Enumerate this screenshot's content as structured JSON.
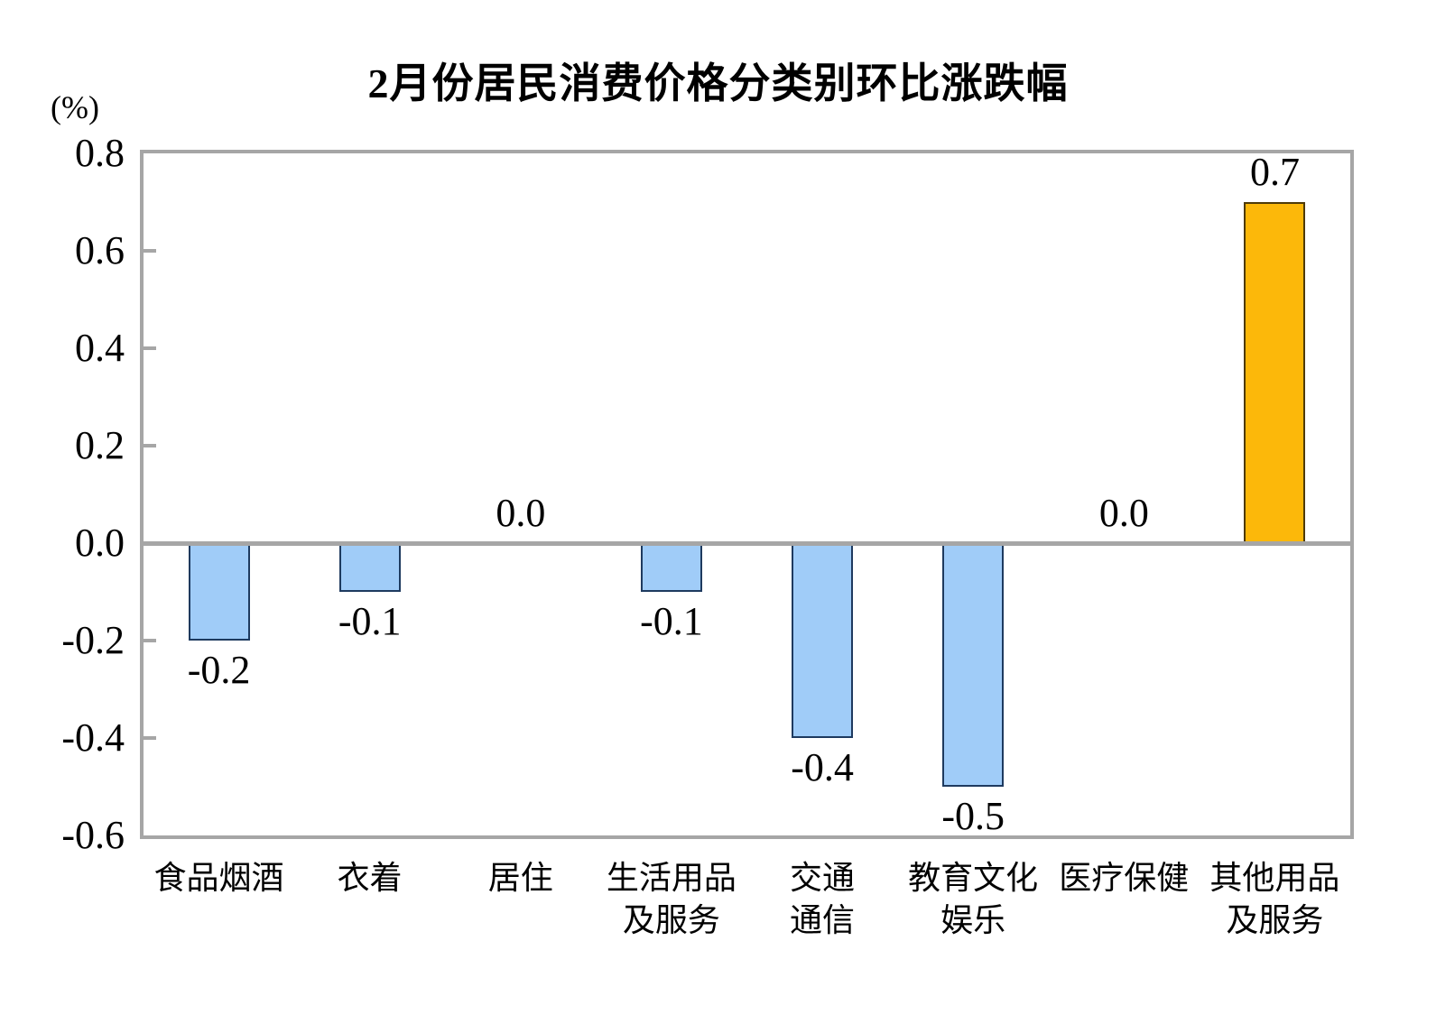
{
  "chart_data": {
    "type": "bar",
    "title": "2月份居民消费价格分类别环比涨跌幅",
    "unit_label": "(%)",
    "categories": [
      "食品烟酒",
      "衣着",
      "居住",
      "生活用品及服务",
      "交通通信",
      "教育文化娱乐",
      "医疗保健",
      "其他用品及服务"
    ],
    "category_display_lines": [
      [
        "食品烟酒"
      ],
      [
        "衣着"
      ],
      [
        "居住"
      ],
      [
        "生活用品",
        "及服务"
      ],
      [
        "交通",
        "通信"
      ],
      [
        "教育文化",
        "娱乐"
      ],
      [
        "医疗保健"
      ],
      [
        "其他用品",
        "及服务"
      ]
    ],
    "values": [
      -0.2,
      -0.1,
      0.0,
      -0.1,
      -0.4,
      -0.5,
      0.0,
      0.7
    ],
    "value_labels": [
      "-0.2",
      "-0.1",
      "0.0",
      "-0.1",
      "-0.4",
      "-0.5",
      "0.0",
      "0.7"
    ],
    "ylabel": "",
    "xlabel": "",
    "ylim": [
      -0.6,
      0.8
    ],
    "ytick_interval": 0.2,
    "ytick_labels": [
      "0.8",
      "0.6",
      "0.4",
      "0.2",
      "0.0",
      "-0.2",
      "-0.4",
      "-0.6"
    ],
    "grid": "off",
    "legend": "none",
    "colors": {
      "bar_fill_default": "#a0ccf8",
      "bar_border_default": "#1e3a5f",
      "bar_fill_positive": "#fcb80a",
      "bar_border_positive": "#4e3a08",
      "axis_line": "#a6a6a6",
      "text": "#000000",
      "background": "#ffffff"
    }
  }
}
